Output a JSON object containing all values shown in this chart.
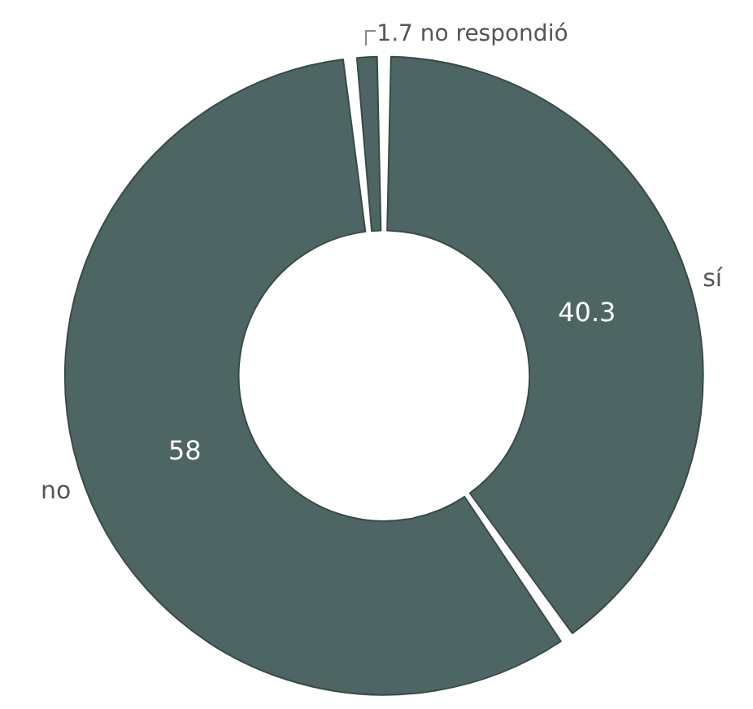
{
  "chart_data": {
    "type": "donut",
    "categories": [
      "sí",
      "no",
      "no respondió"
    ],
    "values": [
      40.3,
      58,
      1.7
    ],
    "colors": [
      "#4e6663",
      "#4e6663",
      "#4e6663"
    ],
    "data_labels": true,
    "legend": false
  }
}
